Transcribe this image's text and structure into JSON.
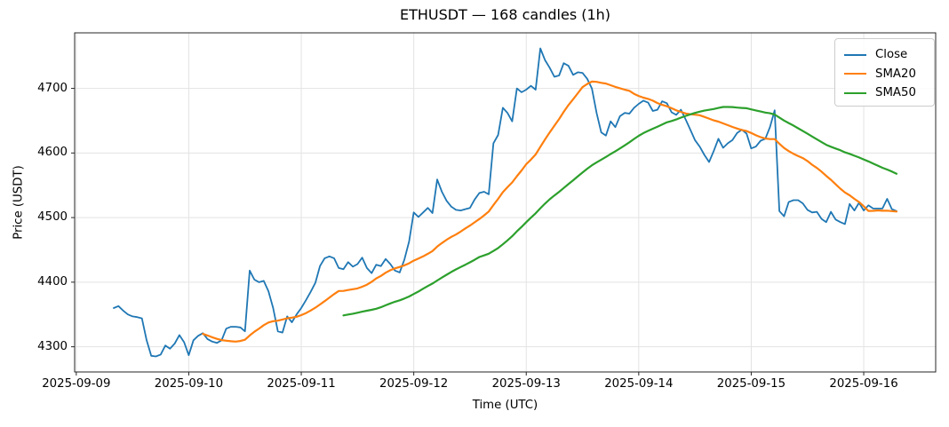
{
  "chart_data": {
    "type": "line",
    "title": "ETHUSDT — 168 candles (1h)",
    "xlabel": "Time (UTC)",
    "ylabel": "Price (USDT)",
    "symbol": "ETHUSDT",
    "n_candles": 168,
    "interval": "1h",
    "grid": true,
    "background": "#ffffff",
    "style": {
      "grid_color": "#e3e3e3",
      "spine_color": "#262626",
      "text_color": "#000000",
      "legend_border_color": "#cccccc"
    },
    "x": {
      "unit": "hours since first candle (first candle ≈ 2025-09-09 08:00 UTC, read from axis geometry)",
      "lim": [
        -8.35,
        175.35
      ],
      "day_ticks": [
        {
          "label": "2025-09-09",
          "hour": -8
        },
        {
          "label": "2025-09-10",
          "hour": 16
        },
        {
          "label": "2025-09-11",
          "hour": 40
        },
        {
          "label": "2025-09-12",
          "hour": 64
        },
        {
          "label": "2025-09-13",
          "hour": 88
        },
        {
          "label": "2025-09-14",
          "hour": 112
        },
        {
          "label": "2025-09-15",
          "hour": 136
        },
        {
          "label": "2025-09-16",
          "hour": 160
        }
      ]
    },
    "y": {
      "ticks": [
        4300,
        4400,
        4500,
        4600,
        4700
      ],
      "lim": [
        4261,
        4786
      ]
    },
    "legend": {
      "location": "upper right",
      "entries": [
        "Close",
        "SMA20",
        "SMA50"
      ]
    },
    "series": [
      {
        "name": "Close",
        "color": "#1f77b4",
        "line_width": 1.8,
        "values": [
          4360,
          4363,
          4356,
          4350,
          4347,
          4346,
          4344,
          4310,
          4286,
          4285,
          4288,
          4302,
          4297,
          4305,
          4318,
          4307,
          4287,
          4310,
          4317,
          4321,
          4312,
          4308,
          4306,
          4310,
          4328,
          4331,
          4331,
          4330,
          4324,
          4418,
          4404,
          4400,
          4402,
          4386,
          4360,
          4324,
          4322,
          4347,
          4338,
          4350,
          4360,
          4372,
          4385,
          4399,
          4425,
          4437,
          4440,
          4437,
          4422,
          4420,
          4431,
          4424,
          4428,
          4438,
          4422,
          4414,
          4427,
          4425,
          4436,
          4428,
          4418,
          4415,
          4435,
          4463,
          4508,
          4501,
          4508,
          4515,
          4507,
          4559,
          4540,
          4526,
          4517,
          4512,
          4511,
          4513,
          4515,
          4528,
          4538,
          4540,
          4536,
          4615,
          4628,
          4670,
          4662,
          4649,
          4700,
          4694,
          4698,
          4704,
          4698,
          4762,
          4744,
          4732,
          4718,
          4720,
          4739,
          4735,
          4721,
          4725,
          4724,
          4715,
          4700,
          4662,
          4632,
          4627,
          4649,
          4640,
          4657,
          4662,
          4661,
          4670,
          4676,
          4681,
          4678,
          4665,
          4667,
          4680,
          4677,
          4663,
          4659,
          4667,
          4652,
          4636,
          4620,
          4610,
          4597,
          4586,
          4603,
          4622,
          4608,
          4615,
          4620,
          4631,
          4636,
          4630,
          4607,
          4610,
          4619,
          4622,
          4640,
          4666,
          4510,
          4502,
          4524,
          4527,
          4527,
          4522,
          4512,
          4508,
          4509,
          4498,
          4493,
          4509,
          4497,
          4493,
          4490,
          4521,
          4511,
          4523,
          4511,
          4519,
          4514,
          4514,
          4514,
          4529,
          4513,
          4510
        ]
      },
      {
        "name": "SMA20",
        "color": "#ff7f0e",
        "line_width": 2.2,
        "derived": "SMA(Close, 20)",
        "period": 20
      },
      {
        "name": "SMA50",
        "color": "#2ca02c",
        "line_width": 2.2,
        "derived": "SMA(Close, 50)",
        "period": 50
      }
    ]
  }
}
